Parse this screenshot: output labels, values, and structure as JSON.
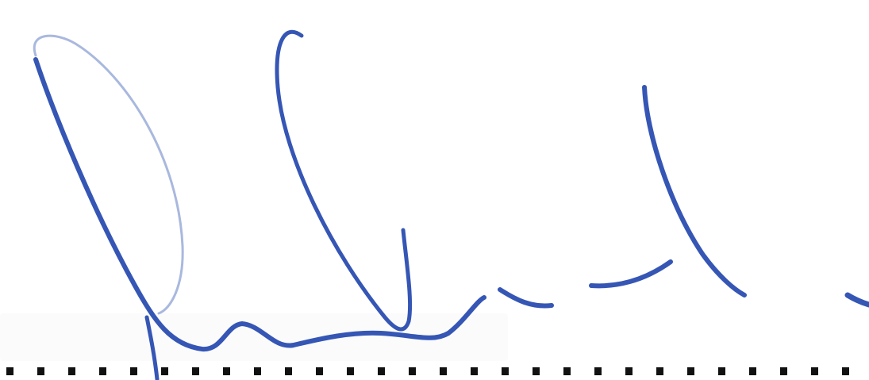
{
  "signature": {
    "description_of_content": "",
    "ink_color": "#3556b4",
    "ink_light_color": "#a9b8de",
    "rule_color": "#111111",
    "rule_style": "dotted"
  }
}
